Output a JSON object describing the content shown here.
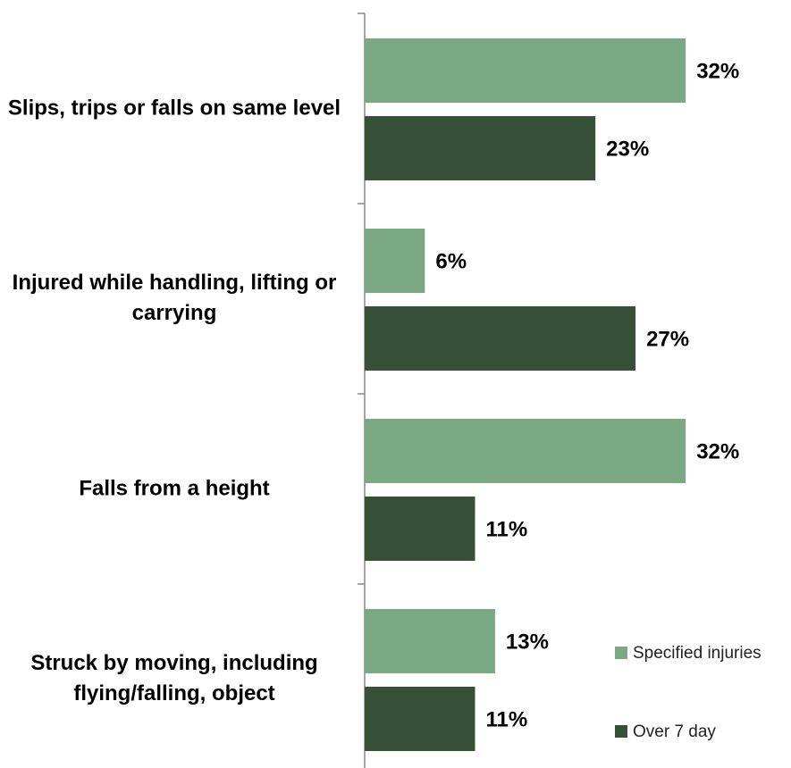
{
  "chart_data": {
    "type": "bar",
    "orientation": "horizontal",
    "categories": [
      "Slips, trips or falls on same level",
      "Injured while handling, lifting or carrying",
      "Falls from a height",
      "Struck by moving, including flying/falling, object"
    ],
    "series": [
      {
        "name": "Specified injuries",
        "color": "#7aa882",
        "values": [
          32,
          6,
          32,
          13
        ],
        "value_labels": [
          "32%",
          "6%",
          "32%",
          "13%"
        ]
      },
      {
        "name": "Over 7 day",
        "color": "#375138",
        "values": [
          23,
          27,
          11,
          11
        ],
        "value_labels": [
          "23%",
          "27%",
          "11%",
          "11%"
        ]
      }
    ],
    "xlim": [
      0,
      40
    ],
    "legend": "bottom-right"
  }
}
